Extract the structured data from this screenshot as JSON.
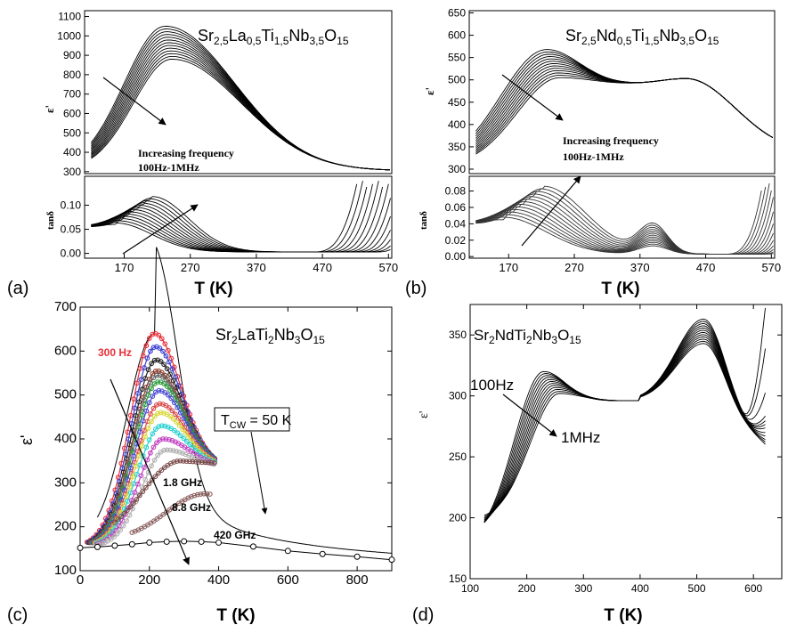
{
  "chart_data": [
    {
      "panel": "(a)",
      "type": "line",
      "title": "Sr2,5La0,5Ti1,5Nb3,5O15",
      "title_parts": [
        [
          "Sr",
          ""
        ],
        [
          "2,5",
          "sub"
        ],
        [
          "La",
          ""
        ],
        [
          "0,5",
          "sub"
        ],
        [
          "Ti",
          ""
        ],
        [
          "1,5",
          "sub"
        ],
        [
          "Nb",
          ""
        ],
        [
          "3,5",
          "sub"
        ],
        [
          "O",
          ""
        ],
        [
          "15",
          "sub"
        ]
      ],
      "xlabel": "T (K)",
      "x_ticks": [
        170,
        270,
        370,
        470,
        570
      ],
      "xlim": [
        110,
        575
      ],
      "top": {
        "ylabel": "ε'",
        "ylim": [
          290,
          1130
        ],
        "y_ticks": [
          300,
          400,
          500,
          600,
          700,
          800,
          900,
          1000,
          1100
        ],
        "series_summary": {
          "curves": 13,
          "peak_T_range": [
            230,
            245
          ],
          "peak_values_range": [
            880,
            1050
          ],
          "high_T_value": 310
        }
      },
      "bottom": {
        "ylabel": "tanδ",
        "ylim": [
          -0.01,
          0.16
        ],
        "y_ticks": [
          0.0,
          0.05,
          0.1
        ],
        "y_tick_labels": [
          "0.00",
          "0.05",
          "0.10"
        ],
        "series_summary": {
          "curves": 13,
          "peak_T_range": [
            155,
            215
          ],
          "peak_values_range": [
            0.06,
            0.115
          ]
        }
      },
      "annotations": [
        "Increasing frequency",
        "100Hz-1MHz"
      ]
    },
    {
      "panel": "(b)",
      "type": "line",
      "title": "Sr2,5Nd0,5Ti1,5Nb3,5O15",
      "title_parts": [
        [
          "Sr",
          ""
        ],
        [
          "2,5",
          "sub"
        ],
        [
          "Nd",
          ""
        ],
        [
          "0,5",
          "sub"
        ],
        [
          "Ti",
          ""
        ],
        [
          "1,5",
          "sub"
        ],
        [
          "Nb",
          ""
        ],
        [
          "3,5",
          "sub"
        ],
        [
          "O",
          ""
        ],
        [
          "15",
          "sub"
        ]
      ],
      "xlabel": "T (K)",
      "x_ticks": [
        170,
        270,
        370,
        470,
        570
      ],
      "xlim": [
        110,
        575
      ],
      "top": {
        "ylabel": "ε'",
        "ylim": [
          290,
          655
        ],
        "y_ticks": [
          300,
          350,
          400,
          450,
          500,
          550,
          600,
          650
        ],
        "series_summary": {
          "curves": 13,
          "peak_T_range": [
            225,
            250
          ],
          "peak_values_range": [
            505,
            568
          ],
          "second_peak": [
            440,
            505
          ]
        }
      },
      "bottom": {
        "ylabel": "tanδ",
        "ylim": [
          -0.002,
          0.098
        ],
        "y_ticks": [
          0.0,
          0.02,
          0.04,
          0.06,
          0.08
        ],
        "y_tick_labels": [
          "0.00",
          "0.02",
          "0.04",
          "0.06",
          "0.08"
        ],
        "series_summary": {
          "curves": 13,
          "peak_T_range": [
            160,
            225
          ],
          "peak_values_range": [
            0.045,
            0.083
          ]
        }
      },
      "annotations": [
        "Increasing frequency",
        "100Hz-1MHz"
      ]
    },
    {
      "panel": "(c)",
      "type": "scatter",
      "title": "Sr2LaTi2Nb3O15",
      "title_parts": [
        [
          "Sr",
          ""
        ],
        [
          "2",
          "sub"
        ],
        [
          "LaTi",
          ""
        ],
        [
          "2",
          "sub"
        ],
        [
          "Nb",
          ""
        ],
        [
          "3",
          "sub"
        ],
        [
          "O",
          ""
        ],
        [
          "15",
          "sub"
        ]
      ],
      "xlabel": "T (K)",
      "ylabel": "ε'",
      "xlim": [
        0,
        900
      ],
      "ylim": [
        100,
        700
      ],
      "x_ticks": [
        0,
        200,
        400,
        600,
        800
      ],
      "y_ticks": [
        100,
        200,
        300,
        400,
        500,
        600,
        700
      ],
      "fit_label": "T",
      "fit_label_sub": "CW",
      "fit_label_rest": " = 50 K",
      "fit": {
        "T": [
          50,
          100,
          200,
          300,
          400,
          500,
          600,
          700,
          800,
          900
        ],
        "eps": [
          158,
          168,
          209,
          236,
          280,
          218,
          186,
          165,
          148,
          135
        ]
      },
      "series": [
        {
          "name": "300 Hz",
          "color": "#e8303a",
          "peak_T": 215,
          "peak": 640
        },
        {
          "name": "",
          "color": "#3a3fd0",
          "peak_T": 218,
          "peak": 610
        },
        {
          "name": "",
          "color": "#222222",
          "peak_T": 220,
          "peak": 580
        },
        {
          "name": "",
          "color": "#8a3a2a",
          "peak_T": 222,
          "peak": 555
        },
        {
          "name": "",
          "color": "#666666",
          "peak_T": 224,
          "peak": 545
        },
        {
          "name": "",
          "color": "#2a9a3a",
          "peak_T": 226,
          "peak": 530
        },
        {
          "name": "",
          "color": "#4a4ad8",
          "peak_T": 228,
          "peak": 510
        },
        {
          "name": "",
          "color": "#d84a4a",
          "peak_T": 230,
          "peak": 480
        },
        {
          "name": "",
          "color": "#d8d83a",
          "peak_T": 232,
          "peak": 460
        },
        {
          "name": "",
          "color": "#2ad0d0",
          "peak_T": 235,
          "peak": 430
        },
        {
          "name": "",
          "color": "#c040c0",
          "peak_T": 240,
          "peak": 400
        },
        {
          "name": "",
          "color": "#b0b0b0",
          "peak_T": 248,
          "peak": 375
        },
        {
          "name": "1.8 GHz",
          "color": "#7a4a4a",
          "peak_T": 290,
          "peak": 350
        },
        {
          "name": "8.8 GHz",
          "color": "#8a6060",
          "peak_T": 360,
          "peak": 275
        },
        {
          "name": "420 GHz",
          "color": "#222222",
          "peak_T": 300,
          "peak": 167
        }
      ],
      "hf_points": {
        "T": [
          0,
          50,
          100,
          150,
          200,
          250,
          300,
          350,
          400,
          500,
          600,
          700,
          800,
          900
        ],
        "eps": [
          152,
          154,
          157,
          160,
          164,
          166,
          167,
          166,
          164,
          155,
          145,
          138,
          132,
          125
        ]
      }
    },
    {
      "panel": "(d)",
      "type": "line",
      "title": "Sr2NdTi2Nb3O15",
      "title_parts": [
        [
          "Sr",
          ""
        ],
        [
          "2",
          "sub"
        ],
        [
          "NdTi",
          ""
        ],
        [
          "2",
          "sub"
        ],
        [
          "Nb",
          ""
        ],
        [
          "3",
          "sub"
        ],
        [
          "O",
          ""
        ],
        [
          "15",
          "sub"
        ]
      ],
      "xlabel": "T (K)",
      "ylabel": "ε'",
      "xlim": [
        100,
        650
      ],
      "ylim": [
        150,
        375
      ],
      "x_ticks": [
        100,
        200,
        300,
        400,
        500,
        600
      ],
      "y_ticks": [
        150,
        200,
        250,
        300,
        350
      ],
      "series_summary": {
        "curves": 12,
        "first_peak_T": [
          225,
          260
        ],
        "first_peak_values": [
          302,
          320
        ],
        "second_peak_T": 510,
        "second_peak_values": [
          343,
          363
        ]
      },
      "annotations": [
        "100Hz",
        "1MHz"
      ]
    }
  ],
  "panel_labels": [
    "(a)",
    "(b)",
    "(c)",
    "(d)"
  ]
}
